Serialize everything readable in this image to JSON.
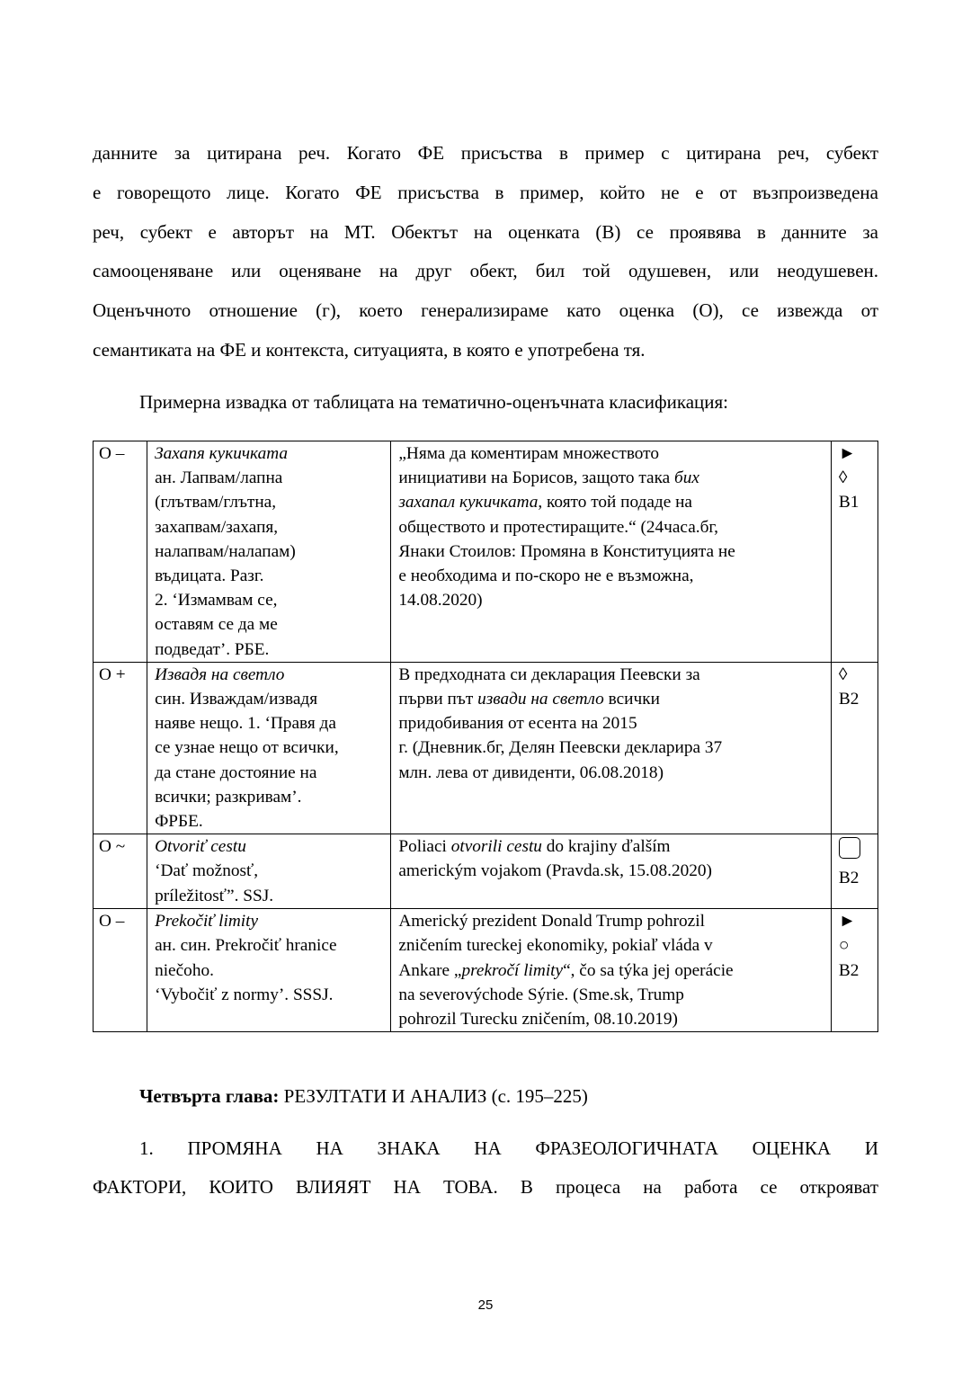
{
  "paragraph1": [
    "данните за цитирана реч. Когато ФЕ присъства в пример с цитирана реч, субект",
    "е говорещото лице. Когато ФЕ присъства в пример, който не е от възпроизведена",
    "реч, субект е авторът на МТ. Обектът на оценката (В) се проявява в данните за",
    "самооценяване или оценяване на друг обект, бил той одушевен, или неодушевен.",
    "Оценъчното отношение (г), което генерализираме като оценка (О), се извежда от",
    "семантиката на ФЕ и контекста, ситуацията, в която е употребена тя."
  ],
  "table_intro": "Примерна извадка от таблицата на тематично-оценъчната класификация:",
  "table": [
    {
      "cells": [
        [
          [
            {
              "t": "О –"
            }
          ]
        ],
        [
          [
            {
              "t": "Захапя кукичката",
              "i": true
            }
          ],
          [
            {
              "t": "ан. Лапвам/лапна"
            }
          ],
          [
            {
              "t": "(глътвам/глътна,"
            }
          ],
          [
            {
              "t": "захапвам/захапя,"
            }
          ],
          [
            {
              "t": "налапвам/налапам)"
            }
          ],
          [
            {
              "t": "въдицата. Разг."
            }
          ],
          [
            {
              "t": "2. ‘Измамвам се,"
            }
          ],
          [
            {
              "t": "оставям се да ме"
            }
          ],
          [
            {
              "t": "подведат’. РБЕ."
            }
          ]
        ],
        [
          [
            {
              "t": "„Няма да коментирам множеството"
            }
          ],
          [
            {
              "t": "инициативи на Борисов, защото така "
            },
            {
              "t": "бих",
              "i": true
            }
          ],
          [
            {
              "t": "захапал кукичката",
              "i": true
            },
            {
              "t": ", която той подаде на"
            }
          ],
          [
            {
              "t": "обществото и протестиращите.“ (24часа.бг,"
            }
          ],
          [
            {
              "t": "Янаки Стоилов: Промяна в Конституцията не"
            }
          ],
          [
            {
              "t": "е необходима и по-скоро не е възможна,"
            }
          ],
          [
            {
              "t": "14.08.2020)"
            }
          ]
        ],
        [
          [
            {
              "t": "►"
            }
          ],
          [
            {
              "t": "◊"
            }
          ],
          [
            {
              "t": "В1"
            }
          ]
        ]
      ]
    },
    {
      "cells": [
        [
          [
            {
              "t": "О +"
            }
          ]
        ],
        [
          [
            {
              "t": "Извадя на светло",
              "i": true
            }
          ],
          [
            {
              "t": "син. Изваждам/извадя"
            }
          ],
          [
            {
              "t": "наяве нещо. 1. ‘Правя да"
            }
          ],
          [
            {
              "t": "се узнае нещо от всички,"
            }
          ],
          [
            {
              "t": "да стане достояние на"
            }
          ],
          [
            {
              "t": "всички; разкривам’."
            }
          ],
          [
            {
              "t": "ФРБЕ."
            }
          ]
        ],
        [
          [
            {
              "t": "В предходната си декларация Пеевски за"
            }
          ],
          [
            {
              "t": "първи път "
            },
            {
              "t": "извади на светло",
              "i": true
            },
            {
              "t": " всички"
            }
          ],
          [
            {
              "t": "придобивания от есента на 2015"
            }
          ],
          [
            {
              "t": "г. (Дневник.бг, Делян Пеевски декларира 37"
            }
          ],
          [
            {
              "t": "млн. лева от дивиденти, 06.08.2018)"
            }
          ]
        ],
        [
          [
            {
              "t": "◊"
            }
          ],
          [
            {
              "t": "В2"
            }
          ]
        ]
      ]
    },
    {
      "cells": [
        [
          [
            {
              "t": "О ~"
            }
          ]
        ],
        [
          [
            {
              "t": "Otvoriť cestu",
              "i": true
            }
          ],
          [
            {
              "t": "‘Dať možnosť,"
            }
          ],
          [
            {
              "t": "príležitosť”. SSJ."
            }
          ]
        ],
        [
          [
            {
              "t": "Poliaci "
            },
            {
              "t": "otvorili cestu",
              "i": true
            },
            {
              "t": " do krajiny ďalším"
            }
          ],
          [
            {
              "t": "americkým vojakom (Pravda.sk, 15.08.2020)"
            }
          ]
        ],
        [
          [
            {
              "box": true
            }
          ],
          [
            {
              "t": "В2"
            }
          ]
        ]
      ]
    },
    {
      "cells": [
        [
          [
            {
              "t": "О –"
            }
          ]
        ],
        [
          [
            {
              "t": "Prekočiť limity",
              "i": true
            }
          ],
          [
            {
              "t": "ан. син. Prekročiť hranice"
            }
          ],
          [
            {
              "t": "niečoho."
            }
          ],
          [
            {
              "t": "‘Vybočiť z normy’. SSSJ."
            }
          ]
        ],
        [
          [
            {
              "t": "Americký prezident Donald Trump pohrozil"
            }
          ],
          [
            {
              "t": "zničením tureckej ekonomiky, pokiaľ vláda v"
            }
          ],
          [
            {
              "t": "Ankare „"
            },
            {
              "t": "prekročí limity",
              "i": true
            },
            {
              "t": "“, čo sa týka jej operácie"
            }
          ],
          [
            {
              "t": "na severovýchode Sýrie. (Sme.sk, Trump"
            }
          ],
          [
            {
              "t": "pohrozil Turecku zničením, 08.10.2019)"
            }
          ]
        ],
        [
          [
            {
              "t": "►"
            }
          ],
          [
            {
              "t": "○"
            }
          ],
          [
            {
              "t": "В2"
            }
          ]
        ]
      ]
    }
  ],
  "chapter": {
    "label": "Четвърта глава:",
    "title": " РЕЗУЛТАТИ И АНАЛИЗ (с. 195–225)"
  },
  "section": [
    "1. ПРОМЯНА НА ЗНАКА НА ФРАЗЕОЛОГИЧНАТА ОЦЕНКА И",
    "ФАКТОРИ, КОИТО ВЛИЯЯТ НА ТОВА. В процеса на работа се открояват"
  ],
  "page_number": "25"
}
